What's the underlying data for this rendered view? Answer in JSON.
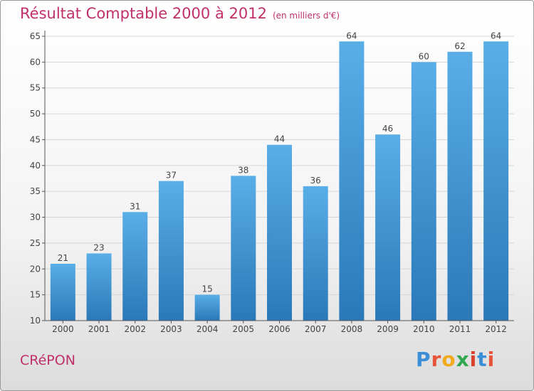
{
  "header": {
    "title": "Résultat Comptable 2000 à 2012",
    "subtitle": "(en milliers d'€)"
  },
  "footer": {
    "place": "CRéPON",
    "logo": "Proxiti",
    "logo_colors": [
      "#3a8fd8",
      "#e8543a",
      "#f2a91e",
      "#2fa84f",
      "#d9402e",
      "#3a8fd8",
      "#e8543a"
    ]
  },
  "chart_data": {
    "type": "bar",
    "title": "Résultat Comptable 2000 à 2012",
    "categories": [
      "2000",
      "2001",
      "2002",
      "2003",
      "2004",
      "2005",
      "2006",
      "2007",
      "2008",
      "2009",
      "2010",
      "2011",
      "2012"
    ],
    "values": [
      21,
      23,
      31,
      37,
      15,
      38,
      44,
      36,
      64,
      46,
      60,
      62,
      64
    ],
    "ylim": [
      10,
      65
    ],
    "yticks": [
      10,
      15,
      20,
      25,
      30,
      35,
      40,
      45,
      50,
      55,
      60,
      65
    ],
    "grid": true,
    "colors": {
      "bar_light": "#5aaee8",
      "bar_dark": "#2a78b8"
    }
  }
}
